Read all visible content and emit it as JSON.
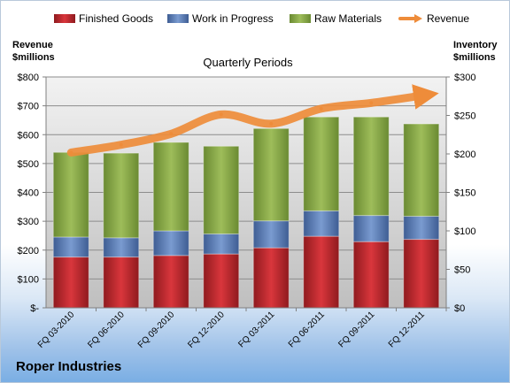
{
  "chart_data": {
    "type": "bar",
    "title": "Roper Industries",
    "subtitle": "Quarterly Periods",
    "ylabel_left": [
      "Revenue",
      "$millions"
    ],
    "ylabel_right": [
      "Inventory",
      "$millions"
    ],
    "categories": [
      "FQ 03-2010",
      "FQ 06-2010",
      "FQ 09-2010",
      "FQ 12-2010",
      "FQ 03-2011",
      "FQ 06-2011",
      "FQ 09-2011",
      "FQ 12-2011"
    ],
    "left_axis": {
      "range": [
        0,
        800
      ],
      "ticks": [
        "$-",
        "$100",
        "$200",
        "$300",
        "$400",
        "$500",
        "$600",
        "$700",
        "$800"
      ]
    },
    "right_axis": {
      "range": [
        0,
        300
      ],
      "ticks": [
        "$0",
        "$50",
        "$100",
        "$150",
        "$200",
        "$250",
        "$300"
      ]
    },
    "series": [
      {
        "name": "Finished Goods",
        "axis": "right",
        "kind": "stacked-bar",
        "color": "#c0232a",
        "values": [
          66,
          66,
          68,
          70,
          78,
          93,
          86,
          89
        ]
      },
      {
        "name": "Work in Progress",
        "axis": "right",
        "kind": "stacked-bar",
        "color": "#5b7fbe",
        "values": [
          26,
          25,
          32,
          26,
          35,
          33,
          34,
          30
        ]
      },
      {
        "name": "Raw Materials",
        "axis": "right",
        "kind": "stacked-bar",
        "color": "#8aa84a",
        "values": [
          110,
          110,
          115,
          114,
          120,
          122,
          128,
          120
        ]
      },
      {
        "name": "Revenue",
        "axis": "left",
        "kind": "line",
        "color": "#ee8c3a",
        "values": [
          538,
          565,
          603,
          670,
          638,
          690,
          710,
          735
        ]
      }
    ],
    "grid": true,
    "legend": "top"
  }
}
